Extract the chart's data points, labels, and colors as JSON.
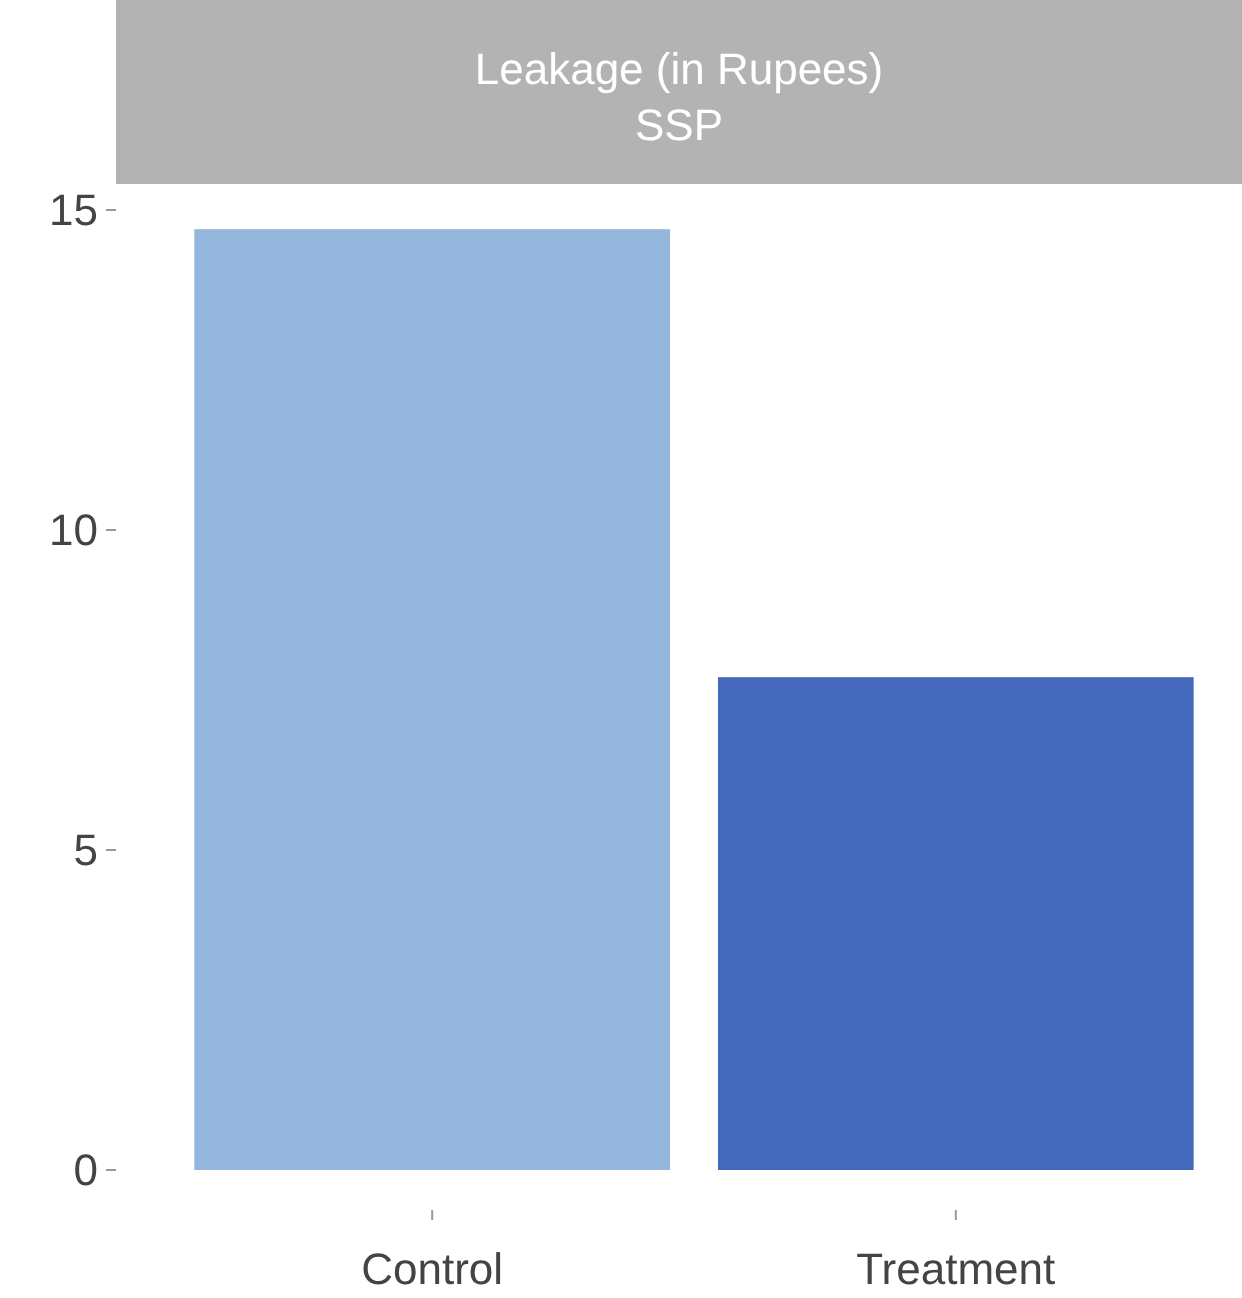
{
  "chart_data": {
    "type": "bar",
    "title": "Leakage (in Rupees)",
    "subtitle": "SSP",
    "categories": [
      "Control",
      "Treatment"
    ],
    "values": [
      14.7,
      7.7
    ],
    "colors": [
      "#94b6dd",
      "#4468bb"
    ],
    "ylim": [
      0,
      15
    ],
    "yticks": [
      0,
      5,
      10,
      15
    ],
    "grid": false
  }
}
